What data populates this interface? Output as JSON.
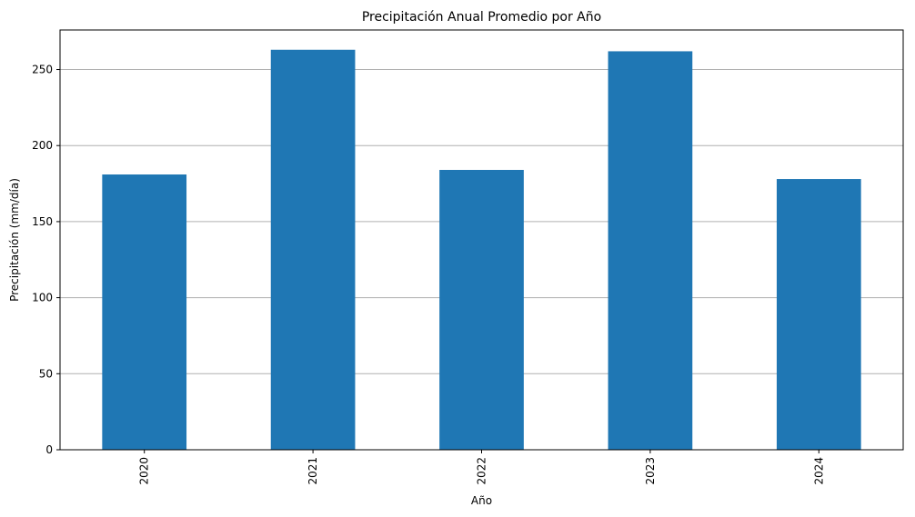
{
  "chart_data": {
    "type": "bar",
    "title": "Precipitación Anual Promedio por Año",
    "xlabel": "Año",
    "ylabel": "Precipitación (mm/día)",
    "categories": [
      "2020",
      "2021",
      "2022",
      "2023",
      "2024"
    ],
    "values": [
      181,
      263,
      184,
      262,
      178
    ],
    "ylim": [
      0,
      276
    ],
    "yticks": [
      0,
      50,
      100,
      150,
      200,
      250
    ],
    "grid": "y",
    "bar_color": "#1f77b4",
    "grid_color": "#b0b0b0"
  }
}
